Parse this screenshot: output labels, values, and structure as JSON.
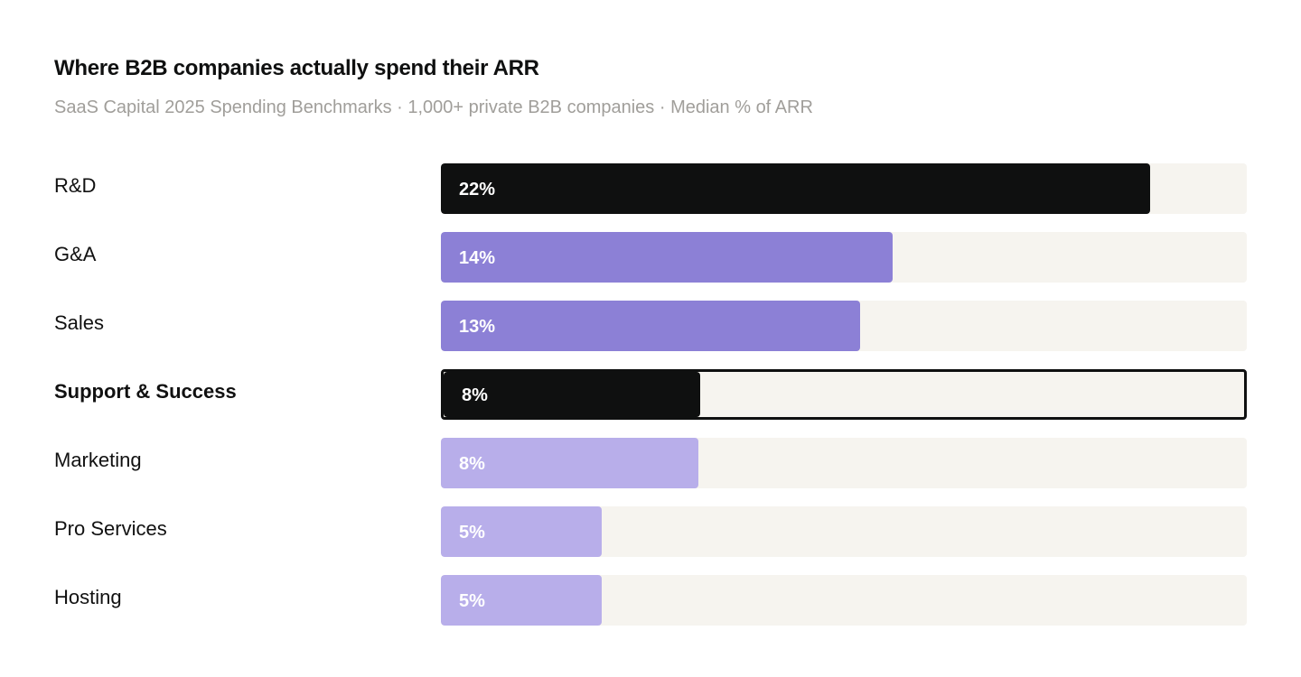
{
  "chart_data": {
    "type": "bar",
    "orientation": "horizontal",
    "title": "Where B2B companies actually spend their ARR",
    "subtitle": "SaaS Capital 2025 Spending Benchmarks · 1,000+ private B2B companies · Median % of ARR",
    "categories": [
      "R&D",
      "G&A",
      "Sales",
      "Support & Success",
      "Marketing",
      "Pro Services",
      "Hosting"
    ],
    "values": [
      22,
      14,
      13,
      8,
      8,
      5,
      5
    ],
    "value_labels": [
      "22%",
      "14%",
      "13%",
      "8%",
      "8%",
      "5%",
      "5%"
    ],
    "xlim": [
      0,
      25
    ],
    "highlighted": "Support & Success",
    "bar_colors": [
      "#0f1010",
      "#8c80d6",
      "#8c80d6",
      "#0f1010",
      "#b8aeea",
      "#b8aeea",
      "#b8aeea"
    ],
    "track_color": "#f6f4ef",
    "legend": "none",
    "grid": false
  }
}
